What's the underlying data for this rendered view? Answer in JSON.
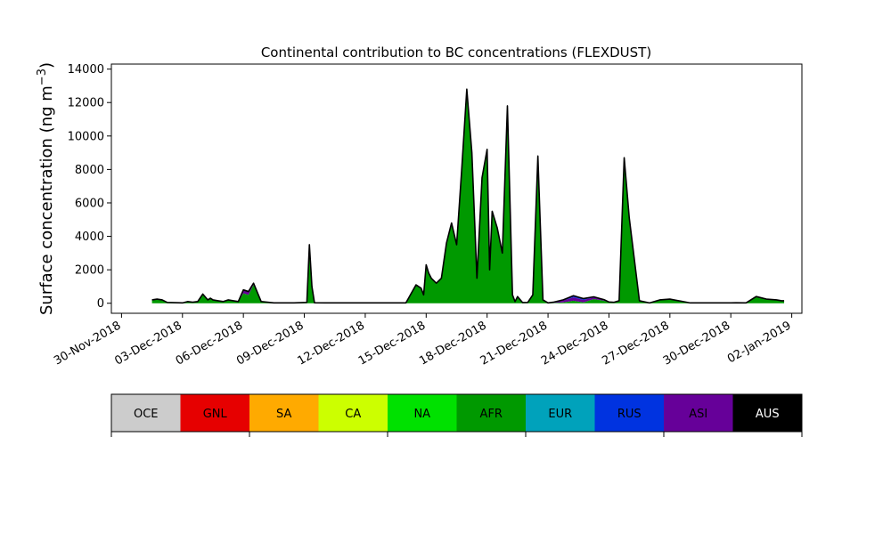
{
  "chart_data": {
    "type": "area",
    "title": "Continental contribution to BC concentrations (FLEXDUST)",
    "ylabel": "Surface concentration (ng m",
    "ylabel_sup": "−3",
    "ylabel_close": ")",
    "xlabel": "",
    "ylim": [
      -600,
      14300
    ],
    "xlim": [
      "2018-11-29T12:00",
      "2019-01-02T12:00"
    ],
    "yticks": [
      0,
      2000,
      4000,
      6000,
      8000,
      10000,
      12000,
      14000
    ],
    "xticks": [
      "2018-11-30",
      "2018-12-03",
      "2018-12-06",
      "2018-12-09",
      "2018-12-12",
      "2018-12-15",
      "2018-12-18",
      "2018-12-21",
      "2018-12-24",
      "2018-12-27",
      "2018-12-30",
      "2019-01-02"
    ],
    "xtick_labels": [
      "30-Nov-2018",
      "03-Dec-2018",
      "06-Dec-2018",
      "09-Dec-2018",
      "12-Dec-2018",
      "15-Dec-2018",
      "18-Dec-2018",
      "21-Dec-2018",
      "24-Dec-2018",
      "27-Dec-2018",
      "30-Dec-2018",
      "02-Jan-2019"
    ],
    "grid": false,
    "regions": [
      {
        "name": "OCE",
        "color": "#cccccc",
        "text_color": "#000000"
      },
      {
        "name": "GNL",
        "color": "#e60000",
        "text_color": "#000000"
      },
      {
        "name": "SA",
        "color": "#ffaa00",
        "text_color": "#000000"
      },
      {
        "name": "CA",
        "color": "#ccff00",
        "text_color": "#000000"
      },
      {
        "name": "NA",
        "color": "#00e100",
        "text_color": "#000000"
      },
      {
        "name": "AFR",
        "color": "#009900",
        "text_color": "#000000"
      },
      {
        "name": "EUR",
        "color": "#00a2bb",
        "text_color": "#000000"
      },
      {
        "name": "RUS",
        "color": "#0033e0",
        "text_color": "#000000"
      },
      {
        "name": "ASI",
        "color": "#660099",
        "text_color": "#000000"
      },
      {
        "name": "AUS",
        "color": "#000000",
        "text_color": "#ffffff"
      }
    ],
    "series": [
      {
        "name": "AFR",
        "x": [
          "2018-12-01T12:00",
          "2018-12-01T18:00",
          "2018-12-02T00:00",
          "2018-12-02T06:00",
          "2018-12-03T00:00",
          "2018-12-03T06:00",
          "2018-12-03T12:00",
          "2018-12-03T18:00",
          "2018-12-04T00:00",
          "2018-12-04T06:00",
          "2018-12-04T09:00",
          "2018-12-04T12:00",
          "2018-12-04T18:00",
          "2018-12-05T00:00",
          "2018-12-05T06:00",
          "2018-12-05T12:00",
          "2018-12-05T18:00",
          "2018-12-06T00:00",
          "2018-12-06T06:00",
          "2018-12-06T12:00",
          "2018-12-06T21:00",
          "2018-12-07T12:00",
          "2018-12-08T12:00",
          "2018-12-09T03:00",
          "2018-12-09T06:00",
          "2018-12-09T09:00",
          "2018-12-09T12:00",
          "2018-12-10T00:00",
          "2018-12-11T00:00",
          "2018-12-12T00:00",
          "2018-12-13T00:00",
          "2018-12-14T00:00",
          "2018-12-14T12:00",
          "2018-12-14T18:00",
          "2018-12-14T21:00",
          "2018-12-15T00:00",
          "2018-12-15T03:00",
          "2018-12-15T06:00",
          "2018-12-15T12:00",
          "2018-12-15T18:00",
          "2018-12-16T00:00",
          "2018-12-16T06:00",
          "2018-12-16T12:00",
          "2018-12-16T18:00",
          "2018-12-17T00:00",
          "2018-12-17T06:00",
          "2018-12-17T12:00",
          "2018-12-17T18:00",
          "2018-12-18T00:00",
          "2018-12-18T03:00",
          "2018-12-18T06:00",
          "2018-12-18T12:00",
          "2018-12-18T18:00",
          "2018-12-19T00:00",
          "2018-12-19T06:00",
          "2018-12-19T09:00",
          "2018-12-19T12:00",
          "2018-12-19T18:00",
          "2018-12-20T00:00",
          "2018-12-20T06:00",
          "2018-12-20T12:00",
          "2018-12-20T18:00",
          "2018-12-21T00:00",
          "2018-12-21T06:00",
          "2018-12-21T18:00",
          "2018-12-22T06:00",
          "2018-12-22T18:00",
          "2018-12-23T06:00",
          "2018-12-23T18:00",
          "2018-12-24T00:00",
          "2018-12-24T06:00",
          "2018-12-24T12:00",
          "2018-12-24T18:00",
          "2018-12-25T00:00",
          "2018-12-25T12:00",
          "2018-12-26T00:00",
          "2018-12-26T12:00",
          "2018-12-27T00:00",
          "2018-12-28T00:00",
          "2018-12-29T00:00",
          "2018-12-30T00:00",
          "2018-12-30T06:00",
          "2018-12-30T18:00",
          "2018-12-31T06:00",
          "2018-12-31T18:00",
          "2019-01-01T06:00",
          "2019-01-01T12:00",
          "2019-01-01T15:00"
        ],
        "values": [
          200,
          250,
          200,
          50,
          20,
          100,
          60,
          100,
          550,
          200,
          300,
          200,
          150,
          100,
          200,
          150,
          100,
          600,
          500,
          1100,
          100,
          20,
          20,
          50,
          3500,
          1000,
          30,
          20,
          20,
          20,
          20,
          20,
          1100,
          900,
          500,
          2300,
          1800,
          1500,
          1200,
          1500,
          3600,
          4800,
          3500,
          8000,
          12800,
          9000,
          1500,
          7500,
          9200,
          2000,
          5500,
          4500,
          3000,
          11800,
          500,
          100,
          400,
          40,
          50,
          500,
          8800,
          200,
          20,
          20,
          50,
          150,
          50,
          250,
          150,
          60,
          50,
          150,
          8500,
          5000,
          150,
          20,
          200,
          250,
          20,
          20,
          20,
          30,
          20,
          400,
          250,
          200,
          150,
          150
        ]
      },
      {
        "name": "ASI",
        "x": [
          "2018-12-05T18:00",
          "2018-12-06T00:00",
          "2018-12-06T06:00",
          "2018-12-06T12:00",
          "2018-12-06T21:00",
          "2018-12-21T00:00",
          "2018-12-22T06:00",
          "2018-12-22T18:00",
          "2018-12-23T06:00",
          "2018-12-23T18:00",
          "2018-12-24T00:00"
        ],
        "values": [
          0,
          200,
          200,
          100,
          0,
          0,
          200,
          150,
          100,
          50,
          0
        ]
      },
      {
        "name": "RUS",
        "x": [
          "2018-12-21T12:00",
          "2018-12-22T06:00",
          "2018-12-22T18:00",
          "2018-12-23T00:00",
          "2018-12-24T12:00",
          "2018-12-24T18:00",
          "2018-12-25T00:00",
          "2018-12-25T12:00"
        ],
        "values": [
          0,
          100,
          80,
          40,
          0,
          200,
          100,
          0
        ]
      }
    ]
  }
}
